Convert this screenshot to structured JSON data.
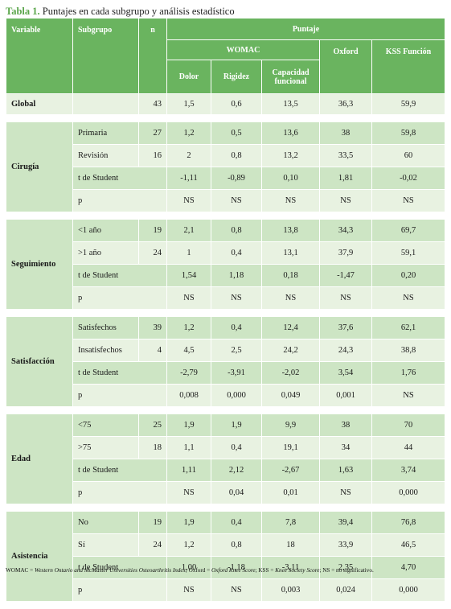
{
  "caption": {
    "label": "Tabla 1.",
    "text": "Puntajes en cada subgrupo y análisis estadístico"
  },
  "header": {
    "variable": "Variable",
    "subgrupo": "Subgrupo",
    "n": "n",
    "puntaje": "Puntaje",
    "womac": "WOMAC",
    "oxford": "Oxford",
    "kss": "KSS Función",
    "dolor": "Dolor",
    "rigidez": "Rigidez",
    "capacidad": "Capacidad funcional"
  },
  "global": {
    "label": "Global",
    "n": "43",
    "dolor": "1,5",
    "rigidez": "0,6",
    "capacidad": "13,5",
    "oxford": "36,3",
    "kss": "59,9"
  },
  "groups": [
    {
      "label": "Cirugía",
      "r1": {
        "sub": "Primaria",
        "n": "27",
        "v": [
          "1,2",
          "0,5",
          "13,6",
          "38",
          "59,8"
        ]
      },
      "r2": {
        "sub": "Revisión",
        "n": "16",
        "v": [
          "2",
          "0,8",
          "13,2",
          "33,5",
          "60"
        ]
      },
      "t": {
        "sub": "t de Student",
        "v": [
          "-1,11",
          "-0,89",
          "0,10",
          "1,81",
          "-0,02"
        ]
      },
      "p": {
        "sub": "p",
        "v": [
          "NS",
          "NS",
          "NS",
          "NS",
          "NS"
        ]
      }
    },
    {
      "label": "Seguimiento",
      "r1": {
        "sub": "<1 año",
        "n": "19",
        "v": [
          "2,1",
          "0,8",
          "13,8",
          "34,3",
          "69,7"
        ]
      },
      "r2": {
        "sub": ">1 año",
        "n": "24",
        "v": [
          "1",
          "0,4",
          "13,1",
          "37,9",
          "59,1"
        ]
      },
      "t": {
        "sub": "t de Student",
        "v": [
          "1,54",
          "1,18",
          "0,18",
          "-1,47",
          "0,20"
        ]
      },
      "p": {
        "sub": "p",
        "v": [
          "NS",
          "NS",
          "NS",
          "NS",
          "NS"
        ]
      }
    },
    {
      "label": "Satisfacción",
      "r1": {
        "sub": "Satisfechos",
        "n": "39",
        "v": [
          "1,2",
          "0,4",
          "12,4",
          "37,6",
          "62,1"
        ]
      },
      "r2": {
        "sub": "Insatisfechos",
        "n": "4",
        "v": [
          "4,5",
          "2,5",
          "24,2",
          "24,3",
          "38,8"
        ]
      },
      "t": {
        "sub": "t de Student",
        "v": [
          "-2,79",
          "-3,91",
          "-2,02",
          "3,54",
          "1,76"
        ]
      },
      "p": {
        "sub": "p",
        "v": [
          "0,008",
          "0,000",
          "0,049",
          "0,001",
          "NS"
        ]
      }
    },
    {
      "label": "Edad",
      "r1": {
        "sub": "<75",
        "n": "25",
        "v": [
          "1,9",
          "1,9",
          "9,9",
          "38",
          "70"
        ]
      },
      "r2": {
        "sub": ">75",
        "n": "18",
        "v": [
          "1,1",
          "0,4",
          "19,1",
          "34",
          "44"
        ]
      },
      "t": {
        "sub": "t de Student",
        "v": [
          "1,11",
          "2,12",
          "-2,67",
          "1,63",
          "3,74"
        ]
      },
      "p": {
        "sub": "p",
        "v": [
          "NS",
          "0,04",
          "0,01",
          "NS",
          "0,000"
        ]
      }
    },
    {
      "label": "Asistencia",
      "r1": {
        "sub": "No",
        "n": "19",
        "v": [
          "1,9",
          "0,4",
          "7,8",
          "39,4",
          "76,8"
        ]
      },
      "r2": {
        "sub": "Sí",
        "n": "24",
        "v": [
          "1,2",
          "0,8",
          "18",
          "33,9",
          "46,5"
        ]
      },
      "t": {
        "sub": "t de Student",
        "v": [
          "1,00",
          "-1,18",
          "-3,11",
          "2,35",
          "4,70"
        ]
      },
      "p": {
        "sub": "p",
        "v": [
          "NS",
          "NS",
          "0,003",
          "0,024",
          "0,000"
        ]
      }
    }
  ],
  "footnote": {
    "a1": "WOMAC = ",
    "b1": "Western Ontario and McMaster Universities Osteoarthritis Index",
    "a2": "; Oxford = ",
    "b2": "Oxford Knee Score",
    "a3": "; KSS = ",
    "b3": "Knee Society Score",
    "a4": "; NS = no significativo."
  }
}
